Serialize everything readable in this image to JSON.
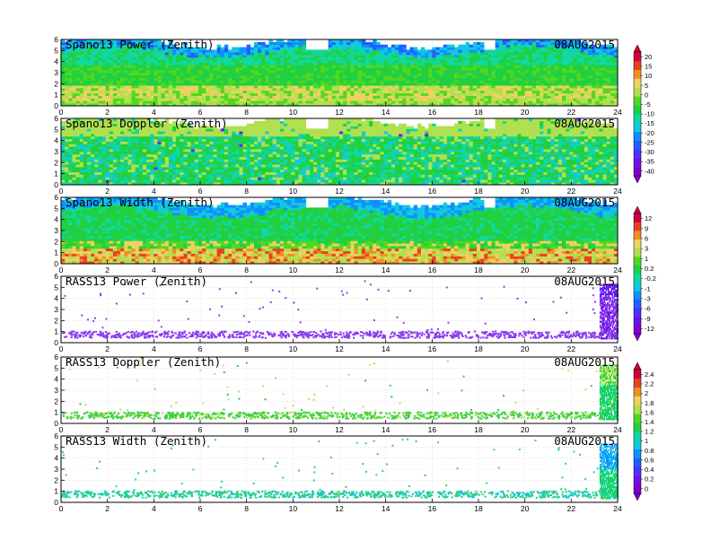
{
  "colors": {
    "power_colorbar": [
      "#8000c8",
      "#7010e8",
      "#5030ff",
      "#2060ff",
      "#1090ff",
      "#10c8e0",
      "#10d8a0",
      "#20d040",
      "#50d820",
      "#b0e050",
      "#f0d060",
      "#f09020",
      "#e84020",
      "#d00040"
    ],
    "doppler_colorbar": [
      "#8000c8",
      "#7010e8",
      "#5030ff",
      "#2060ff",
      "#1090ff",
      "#10c8e0",
      "#10d8a0",
      "#20d040",
      "#50d820",
      "#b0e050",
      "#f0d060",
      "#f09020",
      "#e84020",
      "#d00040"
    ],
    "width_colorbar": [
      "#8000c8",
      "#7010e8",
      "#5030ff",
      "#2060ff",
      "#1090ff",
      "#10c8e0",
      "#10d8a0",
      "#20d040",
      "#50d820",
      "#b0e050",
      "#f0d060",
      "#f09020",
      "#e84020",
      "#d00040"
    ],
    "rass_power_point": "#8a3cf0",
    "rass_doppler_point": "#40d040",
    "rass_width_point": "#30d080",
    "grid": "#cfcfcf"
  },
  "chart_data": [
    {
      "type": "heatmap",
      "title": "Spano13 Power (Zenith)",
      "date_label": "08AUG2015",
      "xlim": [
        0,
        24
      ],
      "ylim": [
        0,
        6
      ],
      "x_ticks": [
        "0",
        "2",
        "4",
        "6",
        "8",
        "10",
        "12",
        "14",
        "16",
        "18",
        "20",
        "22",
        "24"
      ],
      "y_ticks": [
        "0",
        "1",
        "2",
        "3",
        "4",
        "5",
        "6"
      ],
      "colorbar": {
        "labels": [
          "20",
          "15",
          "10",
          "5",
          "0",
          "-5",
          "-10",
          "-15",
          "-20",
          "-25",
          "-30",
          "-35",
          "-40"
        ],
        "range": [
          -40,
          20
        ]
      },
      "description_values": {
        "low_band_value": 5,
        "mid_band_value": -10,
        "upper_band_value": -25,
        "gaps_x": [
          [
            10.5,
            11.6
          ],
          [
            18.3,
            18.8
          ]
        ]
      }
    },
    {
      "type": "heatmap",
      "title": "Spano13 Doppler (Zenith)",
      "date_label": "08AUG2015",
      "xlim": [
        0,
        24
      ],
      "ylim": [
        0,
        6
      ],
      "x_ticks": [
        "0",
        "2",
        "4",
        "6",
        "8",
        "10",
        "12",
        "14",
        "16",
        "18",
        "20",
        "22",
        "24"
      ],
      "y_ticks": [
        "0",
        "1",
        "2",
        "3",
        "4",
        "5",
        "6"
      ],
      "colorbar": {
        "labels": [],
        "range": [
          -40,
          20
        ]
      },
      "description_values": {
        "gaps_x": [
          [
            10.5,
            11.6
          ],
          [
            18.3,
            18.8
          ]
        ]
      }
    },
    {
      "type": "heatmap",
      "title": "Spano13 Width (Zenith)",
      "date_label": "08AUG2015",
      "xlim": [
        0,
        24
      ],
      "ylim": [
        0,
        6
      ],
      "x_ticks": [
        "0",
        "2",
        "4",
        "6",
        "8",
        "10",
        "12",
        "14",
        "16",
        "18",
        "20",
        "22",
        "24"
      ],
      "y_ticks": [
        "0",
        "1",
        "2",
        "3",
        "4",
        "5",
        "6"
      ],
      "colorbar": {
        "labels": [
          "12",
          "9",
          "6",
          "3",
          "1",
          "0.2",
          "-0.2",
          "-1",
          "-3",
          "-6",
          "-9",
          "-12"
        ],
        "range": [
          -12,
          12
        ]
      },
      "description_values": {
        "gaps_x": [
          [
            10.5,
            11.6
          ],
          [
            18.3,
            18.8
          ]
        ]
      }
    },
    {
      "type": "scatter",
      "title": "RASS13 Power (Zenith)",
      "date_label": "08AUG2015",
      "xlim": [
        0,
        24
      ],
      "ylim": [
        0,
        6
      ],
      "x_ticks": [
        "0",
        "2",
        "4",
        "6",
        "8",
        "10",
        "12",
        "14",
        "16",
        "18",
        "20",
        "22",
        "24"
      ],
      "y_ticks": [
        "0",
        "1",
        "2",
        "3",
        "4",
        "5",
        "6"
      ],
      "colorbar": {
        "labels": [],
        "range": [
          -12,
          12
        ]
      },
      "description_values": {
        "dense_band_y": [
          0.5,
          1.1
        ],
        "dense_block_x": [
          23.2,
          24
        ]
      }
    },
    {
      "type": "scatter",
      "title": "RASS13 Doppler (Zenith)",
      "date_label": "08AUG2015",
      "xlim": [
        0,
        24
      ],
      "ylim": [
        0,
        6
      ],
      "x_ticks": [
        "0",
        "2",
        "4",
        "6",
        "8",
        "10",
        "12",
        "14",
        "16",
        "18",
        "20",
        "22",
        "24"
      ],
      "y_ticks": [
        "0",
        "1",
        "2",
        "3",
        "4",
        "5",
        "6"
      ],
      "colorbar": {
        "labels": [
          "2.4",
          "2.2",
          "2",
          "1.8",
          "1.6",
          "1.4",
          "1.2",
          "1",
          "0.8",
          "0.6",
          "0.4",
          "0.2",
          "0"
        ],
        "range": [
          0,
          2.4
        ]
      },
      "description_values": {
        "dense_band_y": [
          0.5,
          1.1
        ],
        "dense_block_x": [
          23.2,
          24
        ]
      }
    },
    {
      "type": "scatter",
      "title": "RASS13 Width (Zenith)",
      "date_label": "08AUG2015",
      "xlim": [
        0,
        24
      ],
      "ylim": [
        0,
        6
      ],
      "x_ticks": [
        "0",
        "2",
        "4",
        "6",
        "8",
        "10",
        "12",
        "14",
        "16",
        "18",
        "20",
        "22",
        "24"
      ],
      "y_ticks": [
        "0",
        "1",
        "2",
        "3",
        "4",
        "5",
        "6"
      ],
      "colorbar": {
        "labels": [],
        "range": [
          0,
          2.4
        ]
      },
      "description_values": {
        "dense_band_y": [
          0.5,
          1.1
        ],
        "dense_block_x": [
          23.2,
          24
        ]
      }
    }
  ]
}
